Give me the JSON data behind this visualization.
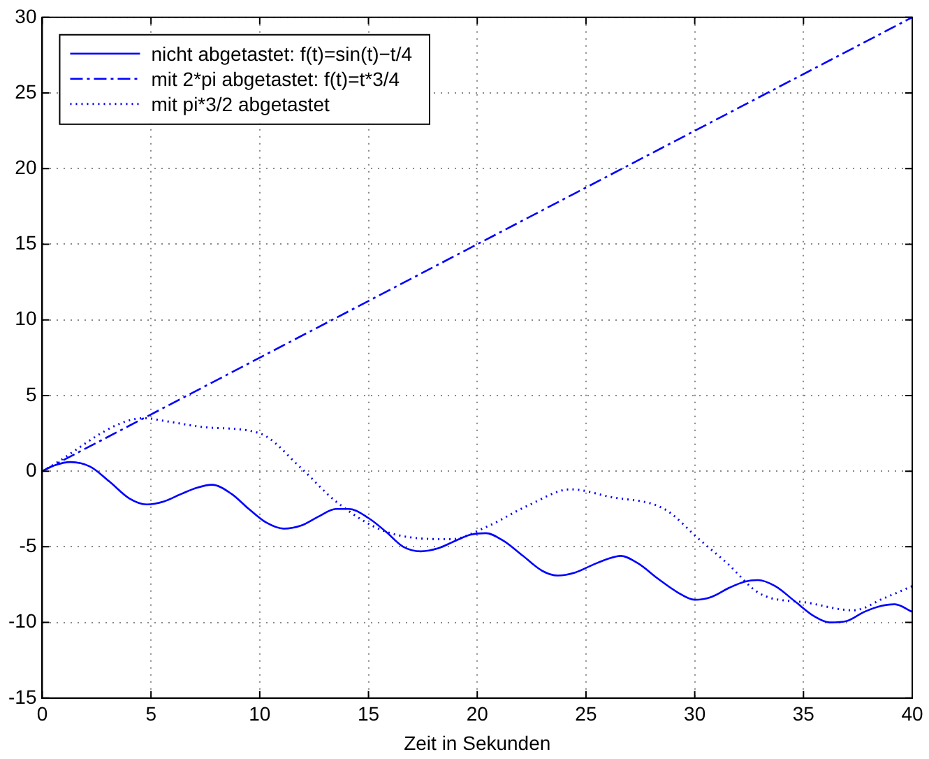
{
  "chart_data": {
    "type": "line",
    "xlabel": "Zeit in Sekunden",
    "xlim": [
      0,
      40
    ],
    "ylim": [
      -15,
      30
    ],
    "xticks": [
      0,
      5,
      10,
      15,
      20,
      25,
      30,
      35,
      40
    ],
    "yticks": [
      -15,
      -10,
      -5,
      0,
      5,
      10,
      15,
      20,
      25,
      30
    ],
    "grid": true,
    "legend": "top left",
    "marker": "none",
    "series": [
      {
        "name": "nicht abgetastet: f(t)=sin(t)−t/4",
        "color": "#0000ff",
        "line_style": "solid",
        "x": [
          0,
          0.6,
          1.3,
          2.2,
          3.1,
          4.0,
          4.8,
          5.6,
          6.4,
          7.1,
          7.8,
          8.7,
          9.5,
          10.3,
          11.1,
          11.9,
          12.7,
          13.5,
          14.1,
          15.0,
          15.8,
          16.6,
          17.4,
          18.2,
          19.0,
          19.7,
          20.4,
          21.2,
          22.1,
          23.0,
          23.7,
          24.5,
          25.3,
          26.0,
          26.6,
          27.4,
          28.3,
          29.2,
          30.0,
          30.8,
          31.6,
          32.3,
          32.9,
          33.7,
          34.6,
          35.5,
          36.2,
          37.0,
          37.8,
          38.6,
          39.2,
          40
        ],
        "values": [
          0,
          0.4,
          0.6,
          0.3,
          -0.7,
          -1.8,
          -2.2,
          -2.0,
          -1.5,
          -1.1,
          -0.9,
          -1.5,
          -2.5,
          -3.4,
          -3.8,
          -3.6,
          -3.0,
          -2.5,
          -2.5,
          -3.1,
          -4.0,
          -5.0,
          -5.3,
          -5.1,
          -4.6,
          -4.2,
          -4.1,
          -4.6,
          -5.6,
          -6.6,
          -6.9,
          -6.7,
          -6.2,
          -5.8,
          -5.6,
          -6.1,
          -7.1,
          -8.0,
          -8.5,
          -8.3,
          -7.7,
          -7.3,
          -7.2,
          -7.6,
          -8.6,
          -9.6,
          -10.0,
          -9.9,
          -9.3,
          -8.9,
          -8.8,
          -9.3
        ]
      },
      {
        "name": "mit 2*pi abgetastet: f(t)=t*3/4",
        "color": "#0000ff",
        "line_style": "dashdot",
        "x": [
          0,
          40
        ],
        "values": [
          0,
          30
        ]
      },
      {
        "name": "mit pi*3/2 abgetastet",
        "color": "#0000ff",
        "line_style": "dotted",
        "x": [
          0,
          4.7,
          5.7,
          7.5,
          10.0,
          11.9,
          13.5,
          15.8,
          18.8,
          20.4,
          22.3,
          24.3,
          26.1,
          28.6,
          30.2,
          31.5,
          33.0,
          35.2,
          37.3,
          38.7,
          40
        ],
        "values": [
          0,
          3.5,
          3.3,
          2.9,
          2.5,
          0.2,
          -2.0,
          -4.0,
          -4.5,
          -3.7,
          -2.3,
          -1.2,
          -1.7,
          -2.5,
          -4.5,
          -6.1,
          -8.1,
          -8.7,
          -9.2,
          -8.4,
          -7.6
        ]
      }
    ]
  }
}
